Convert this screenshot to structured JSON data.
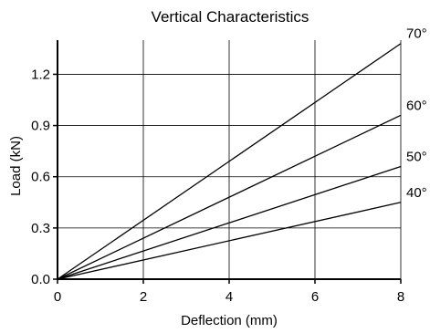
{
  "chart_data": {
    "type": "line",
    "title": "Vertical Characteristics",
    "xlabel": "Deflection (mm)",
    "ylabel": "Load (kN)",
    "xlim": [
      0,
      8
    ],
    "ylim": [
      0,
      1.4
    ],
    "xticks": [
      {
        "value": 0,
        "label": "0"
      },
      {
        "value": 2,
        "label": "2"
      },
      {
        "value": 4,
        "label": "4"
      },
      {
        "value": 6,
        "label": "6"
      },
      {
        "value": 8,
        "label": "8"
      }
    ],
    "yticks": [
      {
        "value": 0,
        "label": "0.0"
      },
      {
        "value": 0.3,
        "label": "0.3"
      },
      {
        "value": 0.6,
        "label": "0.6"
      },
      {
        "value": 0.9,
        "label": "0.9"
      },
      {
        "value": 1.2,
        "label": "1.2"
      }
    ],
    "grid": true,
    "series": [
      {
        "name": "70°",
        "x": [
          0,
          8
        ],
        "y": [
          0,
          1.38
        ]
      },
      {
        "name": "60°",
        "x": [
          0,
          8
        ],
        "y": [
          0,
          0.96
        ]
      },
      {
        "name": "50°",
        "x": [
          0,
          8
        ],
        "y": [
          0,
          0.66
        ]
      },
      {
        "name": "40°",
        "x": [
          0,
          8
        ],
        "y": [
          0,
          0.45
        ]
      }
    ]
  }
}
